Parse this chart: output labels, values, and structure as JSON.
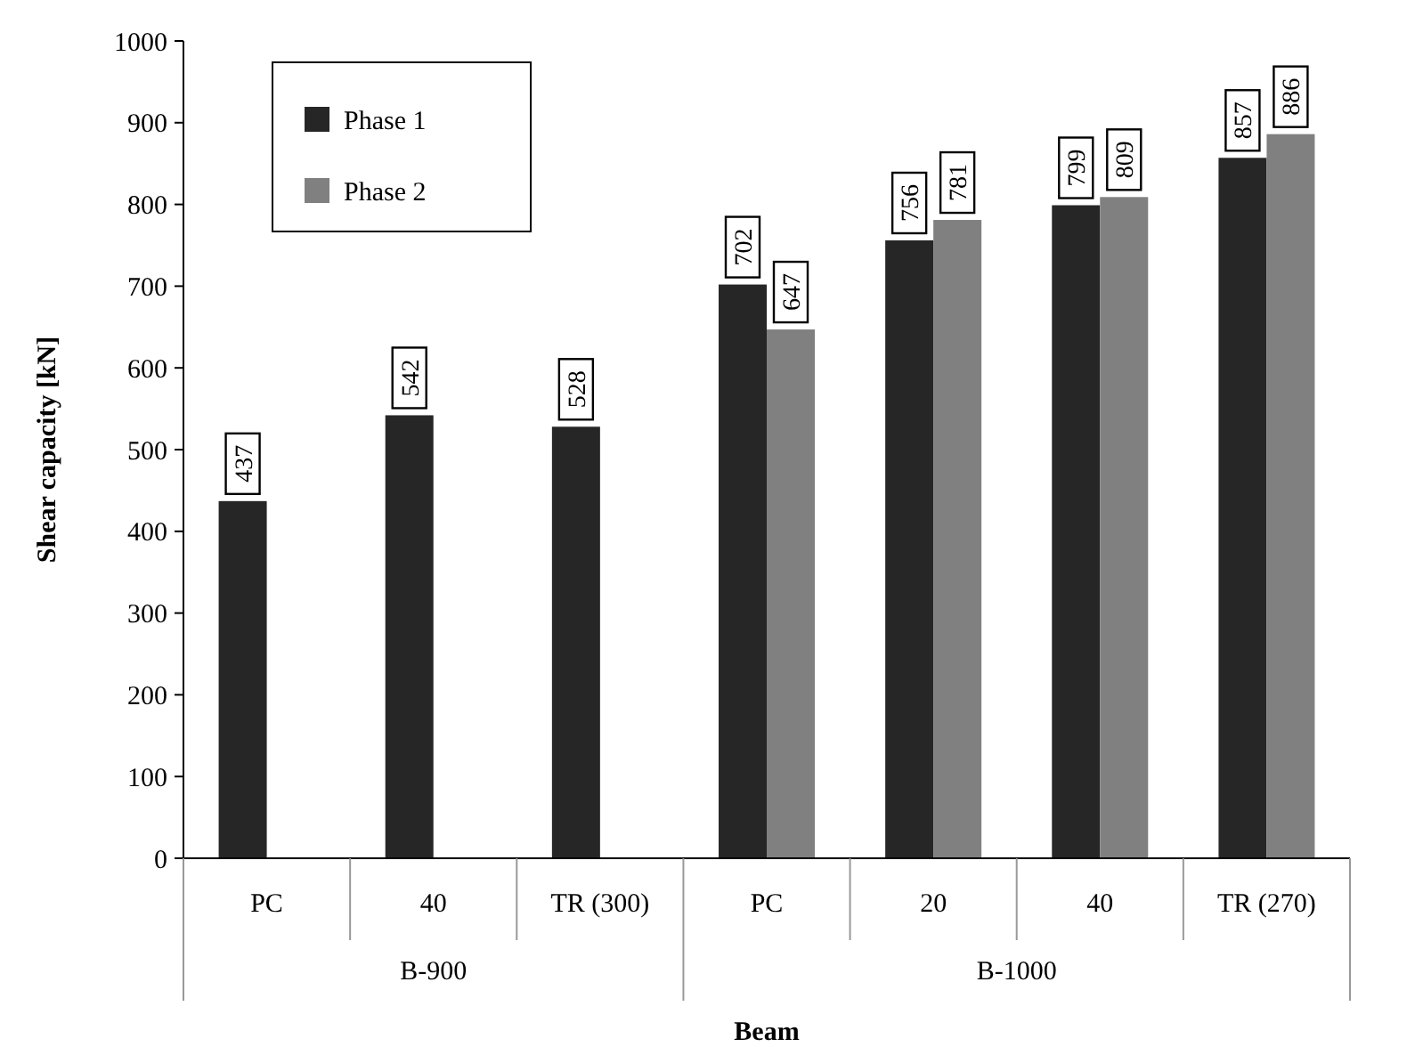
{
  "chart_data": {
    "type": "bar",
    "xlabel": "Beam",
    "ylabel": "Shear capacity [kN]",
    "categories": [
      "PC",
      "40",
      "TR (300)",
      "PC",
      "20",
      "40",
      "TR (270)"
    ],
    "annotations": [
      "B-900",
      "B-1000"
    ],
    "series": [
      {
        "name": "Phase 1",
        "color": "#262626",
        "values": [
          437,
          542,
          528,
          702,
          756,
          799,
          857
        ]
      },
      {
        "name": "Phase 2",
        "color": "#808080",
        "values": [
          null,
          null,
          null,
          647,
          781,
          809,
          886
        ]
      }
    ],
    "ylim": [
      0,
      1000
    ],
    "yticks": [
      0,
      100,
      200,
      300,
      400,
      500,
      600,
      700,
      800,
      900,
      1000
    ],
    "grid": false,
    "legend": "top left",
    "data_labels": true
  }
}
